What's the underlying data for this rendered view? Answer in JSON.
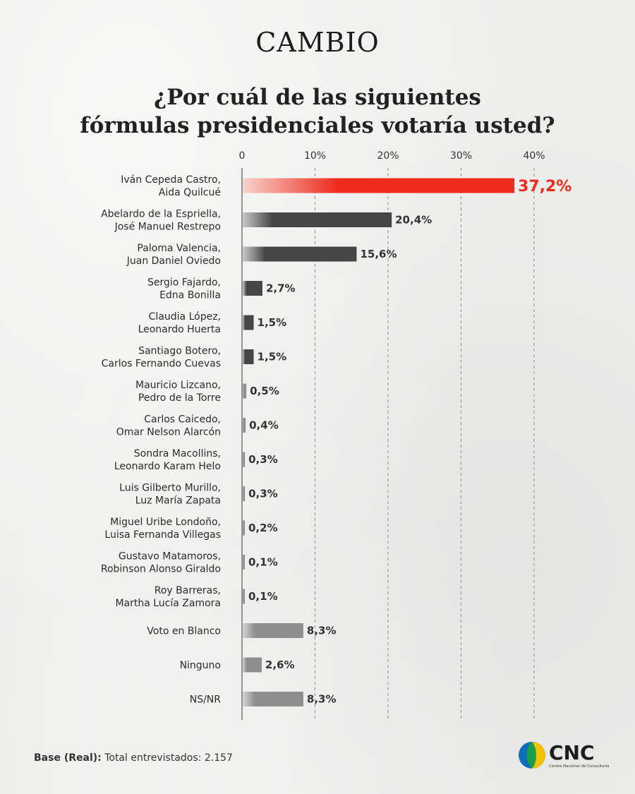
{
  "brand": "CAMBIO",
  "title_line1": "¿Por cuál de las siguientes",
  "title_line2": "fórmulas presidenciales votaría usted?",
  "footnote_label": "Base (Real):",
  "footnote_text": "Total entrevistados: 2.157",
  "logo": {
    "text": "CNC",
    "subtitle": "Centro Nacional de Consultoría",
    "icon": "cnc-circle-logo"
  },
  "colors": {
    "highlight": "#ef2b1d",
    "dark": "#454545",
    "light": "#8e8e8e",
    "background": "#eeeeed"
  },
  "chart_data": {
    "type": "bar",
    "orientation": "horizontal",
    "xlim": [
      0,
      40
    ],
    "ticks": [
      0,
      10,
      20,
      30,
      40
    ],
    "tick_labels": [
      "0",
      "10%",
      "20%",
      "30%",
      "40%"
    ],
    "grid": "vertical-dashed",
    "categories": [
      [
        "Iván Cepeda Castro,",
        "Aida Quilcué"
      ],
      [
        "Abelardo de la Espriella,",
        "José Manuel Restrepo"
      ],
      [
        "Paloma Valencia,",
        "Juan Daniel Oviedo"
      ],
      [
        "Sergio Fajardo,",
        "Edna Bonilla"
      ],
      [
        "Claudia López,",
        "Leonardo Huerta"
      ],
      [
        "Santiago Botero,",
        "Carlos Fernando Cuevas"
      ],
      [
        "Mauricio Lizcano,",
        "Pedro de la Torre"
      ],
      [
        "Carlos Caicedo,",
        "Omar Nelson Alarcón"
      ],
      [
        "Sondra Macollins,",
        "Leonardo Karam Helo"
      ],
      [
        "Luis Gilberto Murillo,",
        "Luz María Zapata"
      ],
      [
        "Miguel Uribe Londoño,",
        "Luisa Fernanda Villegas"
      ],
      [
        "Gustavo Matamoros,",
        "Robinson Alonso Giraldo"
      ],
      [
        "Roy Barreras,",
        "Martha Lucía Zamora"
      ],
      [
        "Voto en Blanco"
      ],
      [
        "Ninguno"
      ],
      [
        "NS/NR"
      ]
    ],
    "values": [
      37.2,
      20.4,
      15.6,
      2.7,
      1.5,
      1.5,
      0.5,
      0.4,
      0.3,
      0.3,
      0.2,
      0.1,
      0.1,
      8.3,
      2.6,
      8.3
    ],
    "value_labels": [
      "37,2%",
      "20,4%",
      "15,6%",
      "2,7%",
      "1,5%",
      "1,5%",
      "0,5%",
      "0,4%",
      "0,3%",
      "0,3%",
      "0,2%",
      "0,1%",
      "0,1%",
      "8,3%",
      "2,6%",
      "8,3%"
    ],
    "styles": [
      "highlight",
      "dark",
      "dark",
      "dark",
      "dark",
      "dark",
      "light",
      "light",
      "light",
      "light",
      "light",
      "light",
      "light",
      "light",
      "light",
      "light"
    ]
  }
}
